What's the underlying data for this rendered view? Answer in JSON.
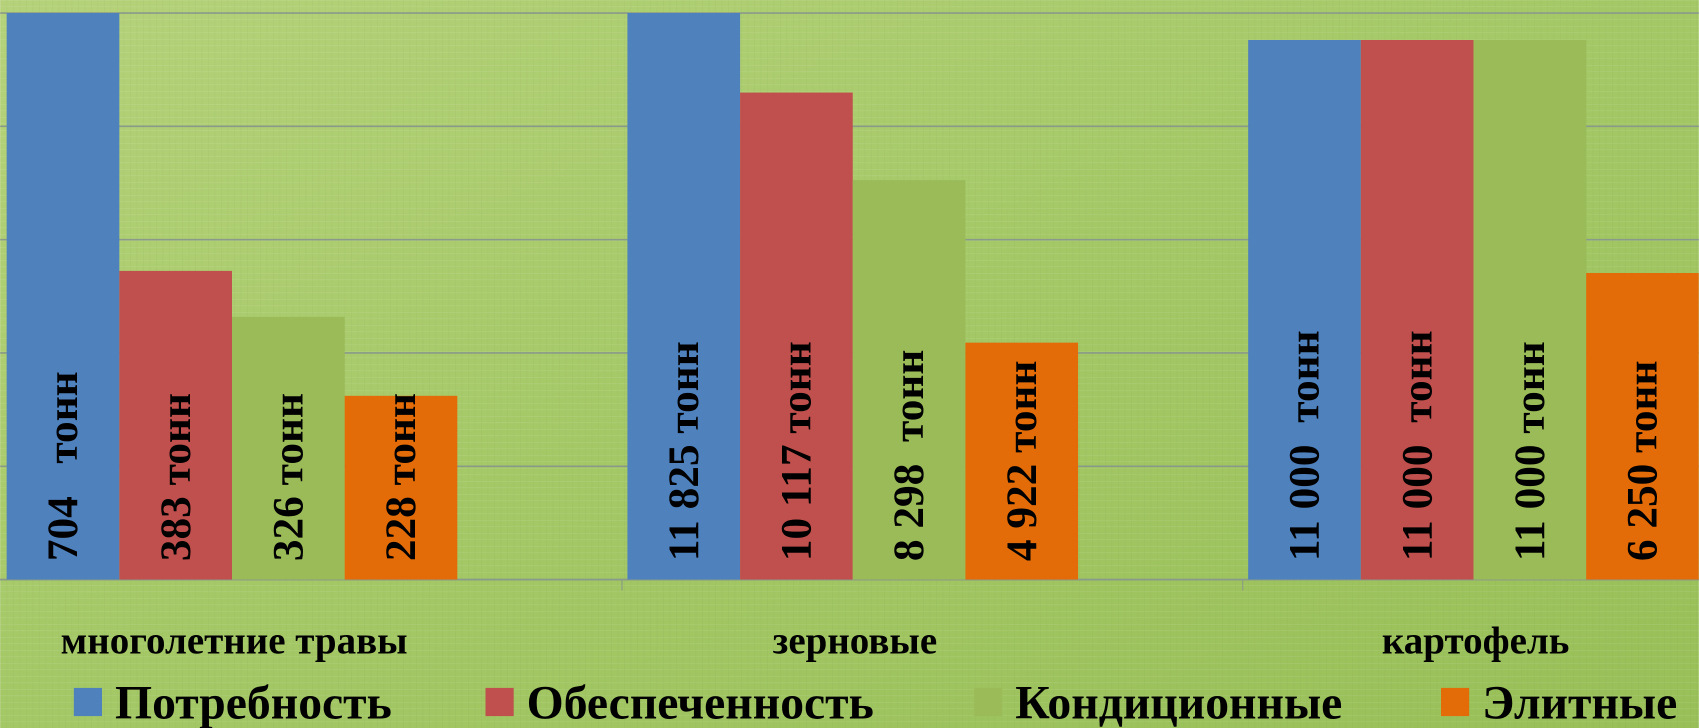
{
  "chart_data": {
    "type": "bar",
    "categories": [
      "многолетние травы",
      "зерновые",
      "картофель"
    ],
    "series": [
      {
        "name": "Потребность",
        "color": "#4f81bd",
        "values": [
          704,
          11825,
          11000
        ],
        "value_labels": [
          "704   тонн",
          "11 825 тонн",
          "11 000  тонн"
        ]
      },
      {
        "name": "Обеспеченность",
        "color": "#c0504d",
        "values": [
          383,
          10117,
          11000
        ],
        "value_labels": [
          "383 тонн",
          "10 117 тонн",
          "11 000  тонн"
        ]
      },
      {
        "name": "Кондиционные",
        "color": "#9bbb59",
        "values": [
          326,
          8298,
          11000
        ],
        "value_labels": [
          "326 тонн",
          "8 298  тонн",
          "11 000 тонн"
        ]
      },
      {
        "name": "Элитные",
        "color": "#e36c09",
        "values": [
          228,
          4922,
          6250
        ],
        "value_labels": [
          "228 тонн",
          "4 922 тонн",
          "6 250 тонн"
        ]
      }
    ],
    "ylims": [
      [
        0,
        703
      ],
      [
        0,
        11770
      ],
      [
        0,
        11550
      ]
    ],
    "grid": true,
    "legend": "bottom"
  }
}
